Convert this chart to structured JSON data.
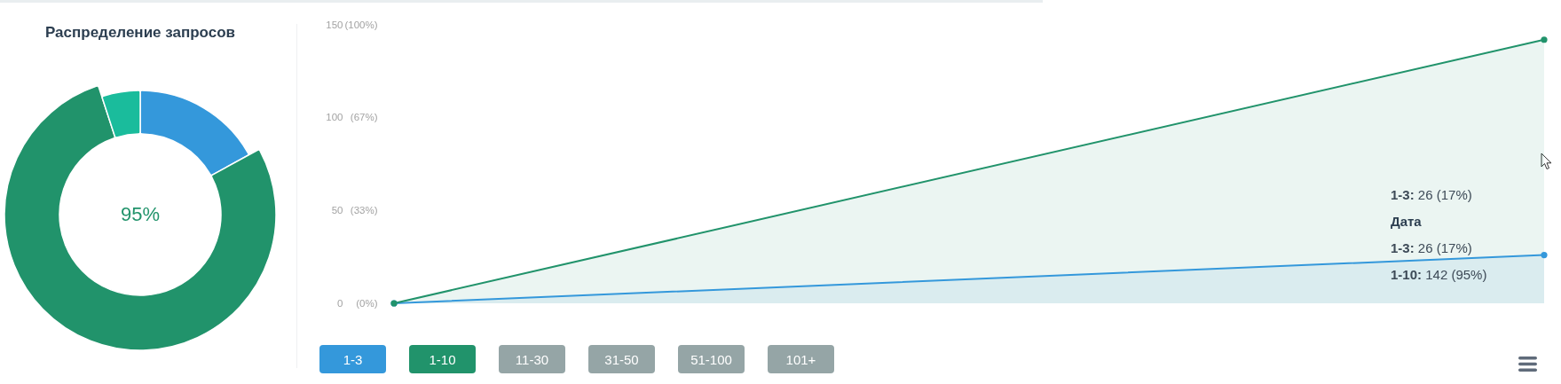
{
  "chart_data": [
    {
      "type": "donut",
      "title": "Распределение запросов",
      "categories": [
        null,
        null,
        null
      ],
      "values": [
        17,
        78,
        5
      ],
      "colors": [
        "#3498db",
        "#21936b",
        "#1abc9c"
      ],
      "annotations": [
        "95%"
      ]
    },
    {
      "type": "area",
      "categories": [
        null,
        null
      ],
      "series": [
        {
          "name": "1-3",
          "color": "#3498db",
          "values": [
            0,
            26
          ]
        },
        {
          "name": "1-10",
          "color": "#21936b",
          "values": [
            0,
            142
          ]
        },
        {
          "name": "11-30",
          "values": [
            null,
            null
          ]
        },
        {
          "name": "31-50",
          "values": [
            null,
            null
          ]
        },
        {
          "name": "51-100",
          "values": [
            null,
            null
          ]
        },
        {
          "name": "101+",
          "values": [
            null,
            null
          ]
        }
      ],
      "ylim": [
        0,
        150
      ],
      "yticks": [
        0,
        50,
        100,
        150
      ],
      "y2lim": [
        0,
        100
      ],
      "y2ticks": [
        {
          "value": 0,
          "label": "(0%)"
        },
        {
          "value": 33.33,
          "label": "(33%)"
        },
        {
          "value": 66.67,
          "label": "(67%)"
        },
        {
          "value": 100,
          "label": "(100%)"
        }
      ],
      "legend": "bottom left",
      "marker": "circle",
      "annotations": [
        "1-3: 26 (17%)",
        "Дата",
        "1-3: 26 (17%)",
        "1-10: 142 (95%)"
      ]
    }
  ]
}
